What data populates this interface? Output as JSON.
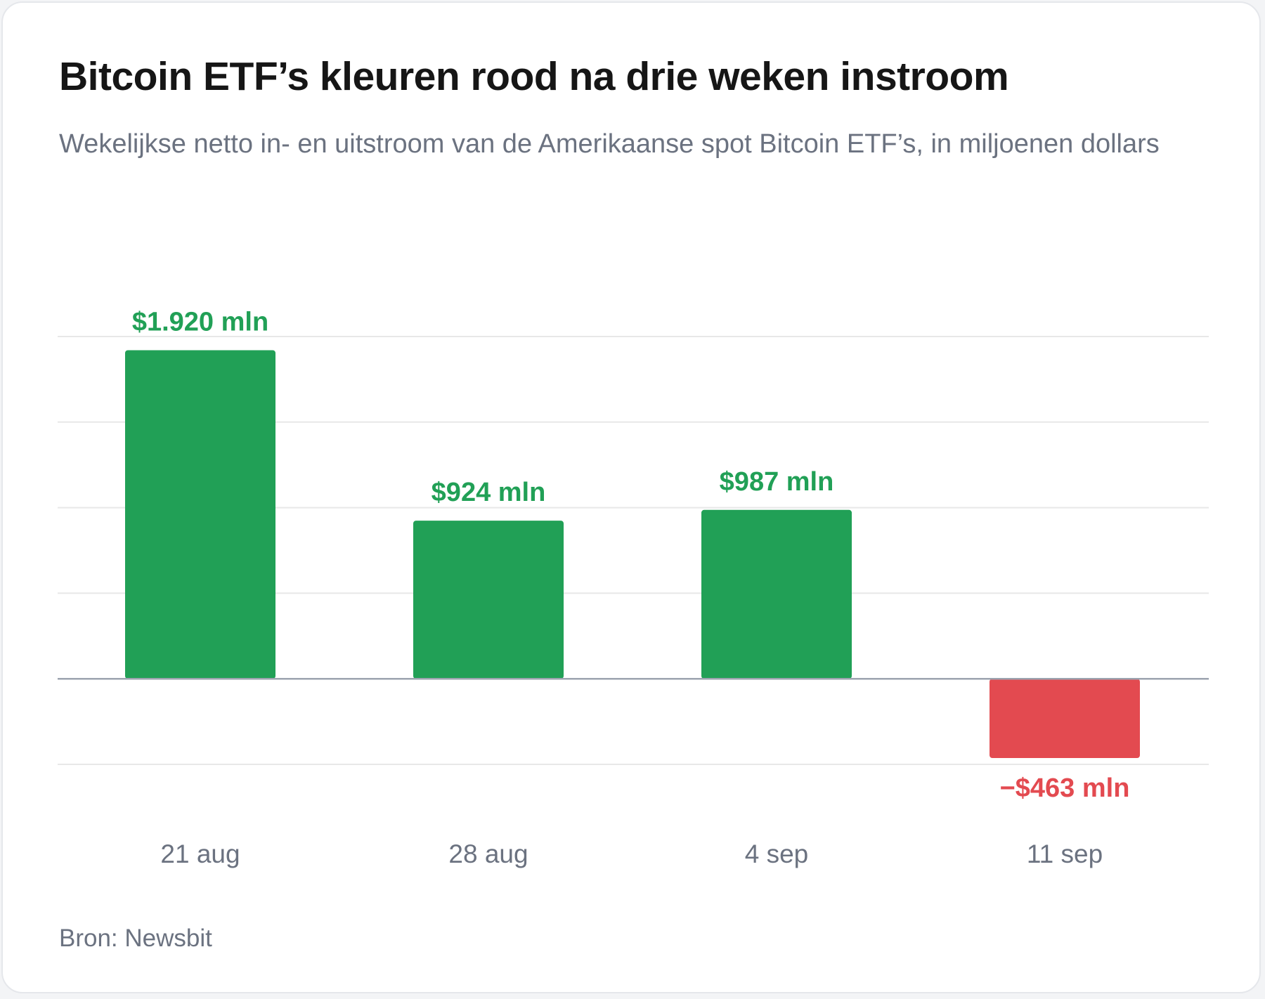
{
  "title": "Bitcoin ETF’s kleuren rood na drie weken instroom",
  "subtitle": "Wekelijkse netto in- en uitstroom van de Amerikaanse spot Bitcoin ETF’s, in miljoenen dollars",
  "source": "Bron: Newsbit",
  "colors": {
    "positive": "#21a056",
    "negative": "#e34a50",
    "grid": "#e8e8e8",
    "zero_line": "#9ca3af",
    "axis_text": "#6b7280"
  },
  "chart_data": {
    "type": "bar",
    "categories": [
      "21 aug",
      "28 aug",
      "4 sep",
      "11 sep"
    ],
    "values": [
      1920,
      924,
      987,
      -463
    ],
    "data_labels": [
      "$1.920 mln",
      "$924 mln",
      "$987 mln",
      "−$463 mln"
    ],
    "unit": "miljoenen dollars",
    "ylim": [
      -500,
      2000
    ],
    "gridline_step": 500,
    "grid": true,
    "legend": "none",
    "xlabel": "",
    "ylabel": ""
  }
}
